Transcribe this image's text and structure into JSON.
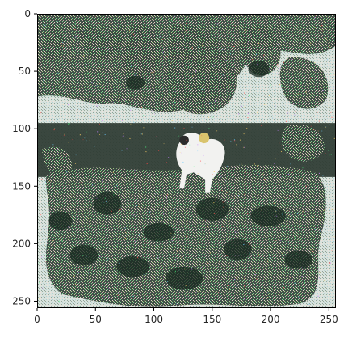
{
  "chart_data": {
    "type": "heatmap",
    "title": "",
    "xlabel": "",
    "ylabel": "",
    "image_width": 256,
    "image_height": 256,
    "xlim": [
      0,
      256
    ],
    "ylim": [
      256,
      0
    ],
    "x_ticks": [
      0,
      50,
      100,
      150,
      200,
      250
    ],
    "y_ticks": [
      0,
      50,
      100,
      150,
      200,
      250
    ],
    "x_tick_labels": [
      "0",
      "50",
      "100",
      "150",
      "200",
      "250"
    ],
    "y_tick_labels": [
      "0",
      "50",
      "100",
      "150",
      "200",
      "250"
    ],
    "grid": false,
    "legend": "none",
    "image_content": "noisy GAN-generated scene: dark foliage at top, dark horizontal band near row 100-140 with a white goat/dog-like animal around x=120-150, dense dark greenish vegetation below, pale bluish-gray border/sky regions with colorful checkerboard noise"
  }
}
